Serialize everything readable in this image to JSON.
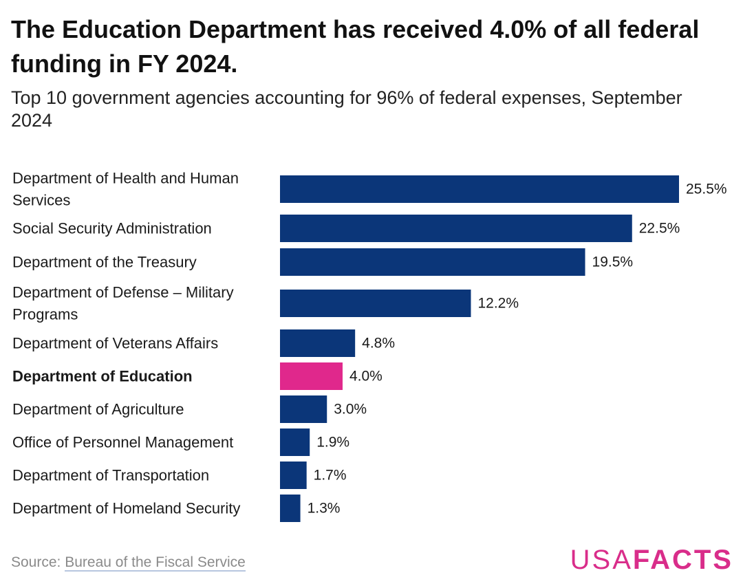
{
  "header": {
    "title": "The Education Department has received 4.0% of all federal funding in FY 2024.",
    "subtitle": "Top 10 government agencies accounting for 96% of federal expenses, September 2024"
  },
  "footer": {
    "source_prefix": "Source: ",
    "source_link": "Bureau of the Fiscal Service",
    "logo_light": "USA",
    "logo_bold": "FACTS"
  },
  "colors": {
    "bar_default": "#0b3679",
    "bar_highlight": "#e0288c",
    "logo": "#d92d8a"
  },
  "chart_data": {
    "type": "bar",
    "orientation": "horizontal",
    "title": "The Education Department has received 4.0% of all federal funding in FY 2024.",
    "subtitle": "Top 10 government agencies accounting for 96% of federal expenses, September 2024",
    "xlabel": "",
    "ylabel": "",
    "xlim": [
      0,
      25.5
    ],
    "value_suffix": "%",
    "highlight": "Department of Education",
    "categories": [
      [
        "Department of Health and Human",
        "Services"
      ],
      [
        "Social Security Administration"
      ],
      [
        "Department of the Treasury"
      ],
      [
        "Department of Defense – Military",
        "Programs"
      ],
      [
        "Department of Veterans Affairs"
      ],
      [
        "Department of Education"
      ],
      [
        "Department of Agriculture"
      ],
      [
        "Office of Personnel Management"
      ],
      [
        "Department of Transportation"
      ],
      [
        "Department of Homeland Security"
      ]
    ],
    "values": [
      25.5,
      22.5,
      19.5,
      12.2,
      4.8,
      4.0,
      3.0,
      1.9,
      1.7,
      1.3
    ],
    "value_labels": [
      "25.5%",
      "22.5%",
      "19.5%",
      "12.2%",
      "4.8%",
      "4.0%",
      "3.0%",
      "1.9%",
      "1.7%",
      "1.3%"
    ]
  }
}
